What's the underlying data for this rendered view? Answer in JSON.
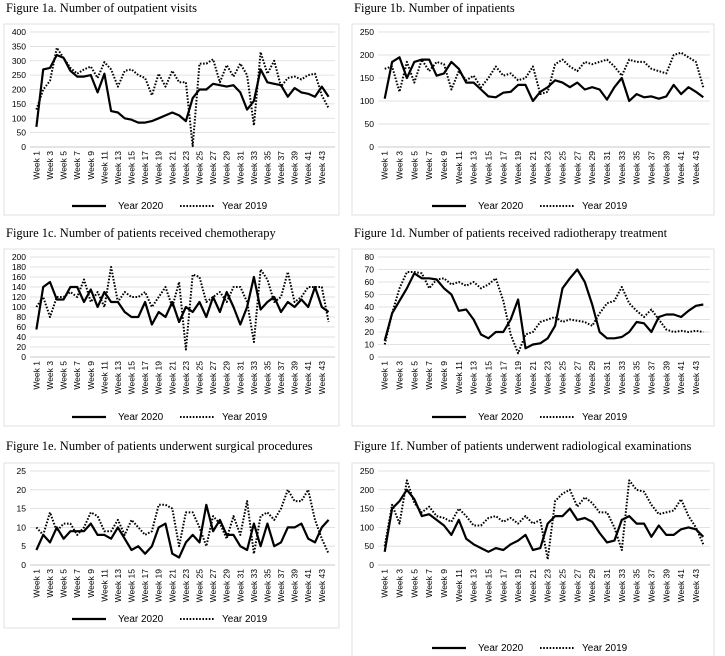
{
  "legend": {
    "series_2020": "Year 2020",
    "series_2019": "Year 2019"
  },
  "week_labels": [
    "Week 1",
    "Week 3",
    "Week 5",
    "Week 7",
    "Week 9",
    "Week 11",
    "Week 13",
    "Week 15",
    "Week 17",
    "Week 19",
    "Week 21",
    "Week 23",
    "Week 25",
    "Week 27",
    "Week 29",
    "Week 31",
    "Week 33",
    "Week 35",
    "Week 37",
    "Week 39",
    "Week 41",
    "Week 43"
  ],
  "chart_data": [
    {
      "type": "line",
      "title": "Figure 1a. Number of outpatient visits",
      "x": [
        1,
        2,
        3,
        4,
        5,
        6,
        7,
        8,
        9,
        10,
        11,
        12,
        13,
        14,
        15,
        16,
        17,
        18,
        19,
        20,
        21,
        22,
        23,
        24,
        25,
        26,
        27,
        28,
        29,
        30,
        31,
        32,
        33,
        34,
        35,
        36,
        37,
        38,
        39,
        40,
        41,
        42,
        43,
        44
      ],
      "ylim": [
        0,
        400
      ],
      "yticks": [
        0,
        50,
        100,
        150,
        200,
        250,
        300,
        350,
        400
      ],
      "series": [
        {
          "name": "Year 2020",
          "style": "solid",
          "values": [
            70,
            270,
            275,
            320,
            310,
            265,
            245,
            245,
            250,
            190,
            255,
            125,
            120,
            100,
            95,
            85,
            85,
            90,
            100,
            110,
            120,
            110,
            90,
            170,
            200,
            200,
            220,
            215,
            210,
            215,
            190,
            130,
            160,
            270,
            225,
            220,
            215,
            175,
            205,
            190,
            185,
            175,
            210,
            175
          ]
        },
        {
          "name": "Year 2019",
          "style": "dotted",
          "values": [
            130,
            200,
            230,
            345,
            310,
            275,
            255,
            270,
            280,
            240,
            295,
            270,
            210,
            265,
            270,
            250,
            240,
            180,
            255,
            210,
            265,
            225,
            225,
            3,
            290,
            290,
            305,
            225,
            285,
            245,
            290,
            250,
            75,
            330,
            255,
            300,
            210,
            240,
            245,
            235,
            250,
            255,
            180,
            135
          ]
        }
      ]
    },
    {
      "type": "line",
      "title": "Figure 1b. Number of inpatients",
      "x": [
        1,
        2,
        3,
        4,
        5,
        6,
        7,
        8,
        9,
        10,
        11,
        12,
        13,
        14,
        15,
        16,
        17,
        18,
        19,
        20,
        21,
        22,
        23,
        24,
        25,
        26,
        27,
        28,
        29,
        30,
        31,
        32,
        33,
        34,
        35,
        36,
        37,
        38,
        39,
        40,
        41,
        42,
        43,
        44
      ],
      "ylim": [
        0,
        250
      ],
      "yticks": [
        0,
        50,
        100,
        150,
        200,
        250
      ],
      "series": [
        {
          "name": "Year 2020",
          "style": "solid",
          "values": [
            105,
            185,
            195,
            150,
            185,
            190,
            190,
            155,
            160,
            185,
            170,
            140,
            140,
            125,
            110,
            108,
            118,
            120,
            135,
            135,
            100,
            120,
            130,
            145,
            140,
            130,
            140,
            125,
            130,
            125,
            103,
            130,
            150,
            100,
            115,
            108,
            110,
            105,
            110,
            135,
            115,
            130,
            120,
            108
          ]
        },
        {
          "name": "Year 2019",
          "style": "dotted",
          "values": [
            170,
            175,
            120,
            185,
            140,
            190,
            165,
            185,
            180,
            125,
            165,
            145,
            155,
            130,
            150,
            175,
            155,
            160,
            145,
            150,
            175,
            115,
            120,
            180,
            190,
            175,
            165,
            185,
            180,
            185,
            190,
            175,
            155,
            190,
            185,
            185,
            170,
            165,
            160,
            200,
            205,
            195,
            185,
            130
          ]
        }
      ]
    },
    {
      "type": "line",
      "title": "Figure 1c. Number of patients received chemotherapy",
      "x": [
        1,
        2,
        3,
        4,
        5,
        6,
        7,
        8,
        9,
        10,
        11,
        12,
        13,
        14,
        15,
        16,
        17,
        18,
        19,
        20,
        21,
        22,
        23,
        24,
        25,
        26,
        27,
        28,
        29,
        30,
        31,
        32,
        33,
        34,
        35,
        36,
        37,
        38,
        39,
        40,
        41,
        42,
        43,
        44
      ],
      "ylim": [
        0,
        200
      ],
      "yticks": [
        0,
        20,
        40,
        60,
        80,
        100,
        120,
        140,
        160,
        180,
        200
      ],
      "series": [
        {
          "name": "Year 2020",
          "style": "solid",
          "values": [
            55,
            140,
            150,
            115,
            115,
            140,
            140,
            110,
            135,
            100,
            130,
            110,
            110,
            90,
            80,
            80,
            110,
            65,
            90,
            80,
            110,
            70,
            100,
            90,
            110,
            80,
            120,
            90,
            130,
            100,
            65,
            100,
            160,
            95,
            110,
            120,
            90,
            110,
            100,
            115,
            100,
            140,
            100,
            90
          ]
        },
        {
          "name": "Year 2019",
          "style": "dotted",
          "values": [
            100,
            120,
            80,
            120,
            120,
            130,
            120,
            155,
            110,
            130,
            100,
            180,
            110,
            130,
            120,
            120,
            130,
            100,
            120,
            140,
            100,
            150,
            15,
            165,
            160,
            110,
            120,
            130,
            110,
            140,
            140,
            110,
            30,
            175,
            155,
            110,
            120,
            170,
            110,
            120,
            140,
            140,
            140,
            70
          ]
        }
      ]
    },
    {
      "type": "line",
      "title": "Figure 1d. Number of patients received radiotherapy treatment",
      "x": [
        1,
        2,
        3,
        4,
        5,
        6,
        7,
        8,
        9,
        10,
        11,
        12,
        13,
        14,
        15,
        16,
        17,
        18,
        19,
        20,
        21,
        22,
        23,
        24,
        25,
        26,
        27,
        28,
        29,
        30,
        31,
        32,
        33,
        34,
        35,
        36,
        37,
        38,
        39,
        40,
        41,
        42,
        43,
        44
      ],
      "ylim": [
        0,
        80
      ],
      "yticks": [
        0,
        10,
        20,
        30,
        40,
        50,
        60,
        70,
        80
      ],
      "series": [
        {
          "name": "Year 2020",
          "style": "solid",
          "values": [
            13,
            35,
            45,
            55,
            67,
            63,
            63,
            62,
            55,
            50,
            37,
            38,
            30,
            18,
            15,
            20,
            20,
            30,
            46,
            7,
            10,
            11,
            15,
            25,
            55,
            63,
            70,
            60,
            42,
            20,
            15,
            15,
            16,
            20,
            28,
            27,
            20,
            32,
            34,
            34,
            32,
            37,
            41,
            42
          ]
        },
        {
          "name": "Year 2019",
          "style": "dotted",
          "values": [
            10,
            35,
            55,
            68,
            68,
            67,
            55,
            62,
            63,
            58,
            60,
            57,
            60,
            55,
            58,
            63,
            45,
            18,
            3,
            18,
            20,
            28,
            30,
            32,
            28,
            30,
            29,
            28,
            25,
            35,
            43,
            45,
            56,
            43,
            37,
            32,
            38,
            30,
            22,
            20,
            21,
            20,
            21,
            20
          ]
        }
      ]
    },
    {
      "type": "line",
      "title": "Figure 1e. Number of patients underwent surgical procedures",
      "x": [
        1,
        2,
        3,
        4,
        5,
        6,
        7,
        8,
        9,
        10,
        11,
        12,
        13,
        14,
        15,
        16,
        17,
        18,
        19,
        20,
        21,
        22,
        23,
        24,
        25,
        26,
        27,
        28,
        29,
        30,
        31,
        32,
        33,
        34,
        35,
        36,
        37,
        38,
        39,
        40,
        41,
        42,
        43,
        44
      ],
      "ylim": [
        0,
        25
      ],
      "yticks": [
        0,
        5,
        10,
        15,
        20,
        25
      ],
      "series": [
        {
          "name": "Year 2020",
          "style": "solid",
          "values": [
            4,
            8,
            6,
            10,
            7,
            9,
            9,
            9,
            11,
            8,
            8,
            7,
            10,
            7,
            4,
            5,
            3,
            5,
            10,
            11,
            3,
            2,
            6,
            8,
            6,
            16,
            9,
            12,
            8,
            8,
            5,
            4,
            11,
            5,
            11,
            5,
            6,
            10,
            10,
            11,
            7,
            6,
            10,
            12
          ]
        },
        {
          "name": "Year 2019",
          "style": "dotted",
          "values": [
            10,
            8,
            14,
            9,
            11,
            11,
            8,
            10,
            14,
            13,
            9,
            9,
            12,
            8,
            12,
            10,
            8,
            9,
            16,
            16,
            15,
            5,
            14,
            14,
            10,
            5,
            13,
            11,
            7,
            13,
            8,
            17,
            3,
            13,
            14,
            12,
            15,
            20,
            17,
            17,
            20,
            12,
            7,
            3
          ]
        }
      ]
    },
    {
      "type": "line",
      "title": "Figure 1f. Number of patients underwent radiological examinations",
      "x": [
        1,
        2,
        3,
        4,
        5,
        6,
        7,
        8,
        9,
        10,
        11,
        12,
        13,
        14,
        15,
        16,
        17,
        18,
        19,
        20,
        21,
        22,
        23,
        24,
        25,
        26,
        27,
        28,
        29,
        30,
        31,
        32,
        33,
        34,
        35,
        36,
        37,
        38,
        39,
        40,
        41,
        42,
        43,
        44
      ],
      "ylim": [
        0,
        250
      ],
      "yticks": [
        0,
        50,
        100,
        150,
        200,
        250
      ],
      "series": [
        {
          "name": "Year 2020",
          "style": "solid",
          "values": [
            35,
            150,
            170,
            200,
            175,
            130,
            135,
            120,
            105,
            80,
            120,
            70,
            55,
            45,
            35,
            45,
            40,
            55,
            65,
            80,
            40,
            45,
            110,
            130,
            130,
            150,
            120,
            125,
            115,
            85,
            60,
            65,
            120,
            130,
            110,
            110,
            75,
            105,
            80,
            80,
            95,
            100,
            95,
            75
          ]
        },
        {
          "name": "Year 2019",
          "style": "dotted",
          "values": [
            50,
            160,
            110,
            225,
            165,
            140,
            155,
            130,
            125,
            115,
            150,
            130,
            105,
            105,
            125,
            130,
            115,
            125,
            110,
            130,
            110,
            120,
            15,
            170,
            190,
            200,
            155,
            180,
            165,
            140,
            140,
            100,
            40,
            225,
            200,
            195,
            160,
            135,
            140,
            145,
            175,
            130,
            100,
            55
          ]
        }
      ]
    }
  ]
}
